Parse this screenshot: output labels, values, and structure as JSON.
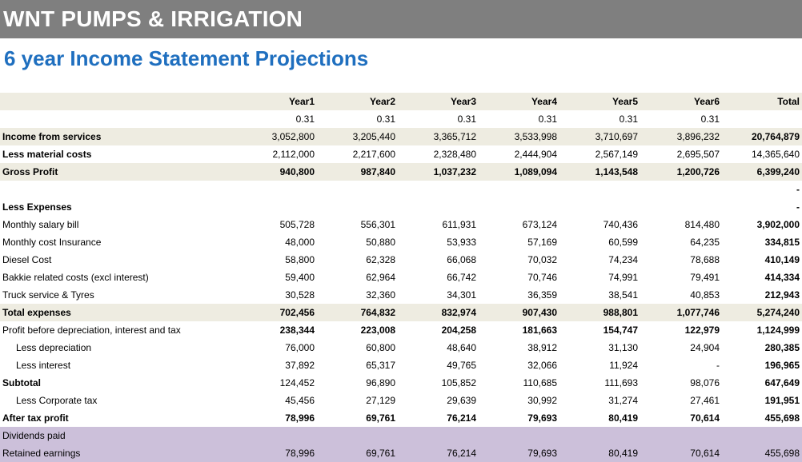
{
  "company": "WNT PUMPS & IRRIGATION",
  "subtitle": "6 year Income Statement Projections",
  "header": {
    "years": [
      "Year1",
      "Year2",
      "Year3",
      "Year4",
      "Year5",
      "Year6"
    ],
    "total": "Total"
  },
  "growth": [
    "",
    "0.31",
    "0.31",
    "0.31",
    "0.31",
    "0.31",
    "0.31",
    ""
  ],
  "rows": {
    "income": [
      "Income from services",
      "3,052,800",
      "3,205,440",
      "3,365,712",
      "3,533,998",
      "3,710,697",
      "3,896,232",
      "20,764,879"
    ],
    "material": [
      "Less material costs",
      "2,112,000",
      "2,217,600",
      "2,328,480",
      "2,444,904",
      "2,567,149",
      "2,695,507",
      "14,365,640"
    ],
    "gross": [
      "Gross Profit",
      "940,800",
      "987,840",
      "1,037,232",
      "1,089,094",
      "1,143,548",
      "1,200,726",
      "6,399,240"
    ],
    "blank": [
      "",
      "",
      "",
      "",
      "",
      "",
      "",
      "-"
    ],
    "expenses_head": [
      "Less Expenses",
      "",
      "",
      "",
      "",
      "",
      "",
      "-"
    ],
    "salary": [
      "Monthly salary bill",
      "505,728",
      "556,301",
      "611,931",
      "673,124",
      "740,436",
      "814,480",
      "3,902,000"
    ],
    "insurance": [
      "Monthly cost Insurance",
      "48,000",
      "50,880",
      "53,933",
      "57,169",
      "60,599",
      "64,235",
      "334,815"
    ],
    "diesel": [
      "Diesel Cost",
      "58,800",
      "62,328",
      "66,068",
      "70,032",
      "74,234",
      "78,688",
      "410,149"
    ],
    "bakkie": [
      "Bakkie related costs (excl interest)",
      "59,400",
      "62,964",
      "66,742",
      "70,746",
      "74,991",
      "79,491",
      "414,334"
    ],
    "truck": [
      "Truck service & Tyres",
      "30,528",
      "32,360",
      "34,301",
      "36,359",
      "38,541",
      "40,853",
      "212,943"
    ],
    "total_exp": [
      "Total expenses",
      "702,456",
      "764,832",
      "832,974",
      "907,430",
      "988,801",
      "1,077,746",
      "5,274,240"
    ],
    "pbdit": [
      "Profit before depreciation, interest and tax",
      "238,344",
      "223,008",
      "204,258",
      "181,663",
      "154,747",
      "122,979",
      "1,124,999"
    ],
    "depreciation": [
      "Less depreciation",
      "76,000",
      "60,800",
      "48,640",
      "38,912",
      "31,130",
      "24,904",
      "280,385"
    ],
    "interest": [
      "Less interest",
      "37,892",
      "65,317",
      "49,765",
      "32,066",
      "11,924",
      "-",
      "196,965"
    ],
    "subtotal": [
      "Subtotal",
      "124,452",
      "96,890",
      "105,852",
      "110,685",
      "111,693",
      "98,076",
      "647,649"
    ],
    "corp_tax": [
      "Less Corporate tax",
      "45,456",
      "27,129",
      "29,639",
      "30,992",
      "31,274",
      "27,461",
      "191,951"
    ],
    "after_tax": [
      "After tax profit",
      "78,996",
      "69,761",
      "76,214",
      "79,693",
      "80,419",
      "70,614",
      "455,698"
    ],
    "dividends": [
      "Dividends paid",
      "",
      "",
      "",
      "",
      "",
      "",
      ""
    ],
    "retained": [
      "Retained earnings",
      "78,996",
      "69,761",
      "76,214",
      "79,693",
      "80,419",
      "70,614",
      "455,698"
    ]
  }
}
